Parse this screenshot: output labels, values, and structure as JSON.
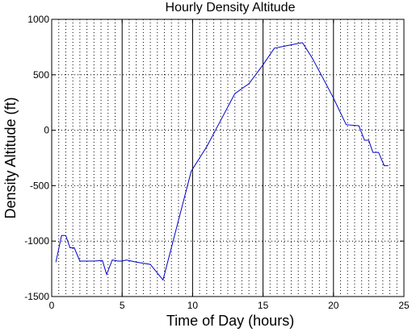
{
  "chart_data": {
    "type": "line",
    "title": "Hourly Density Altitude",
    "xlabel": "Time of Day (hours)",
    "ylabel": "Density Altitude (ft)",
    "xlim": [
      0,
      25
    ],
    "ylim": [
      -1500,
      1000
    ],
    "xticks": [
      0,
      5,
      10,
      15,
      20,
      25
    ],
    "yticks": [
      -1500,
      -1000,
      -500,
      0,
      500,
      1000
    ],
    "grid": "dotted vertical lines every 0.5 h, solid vertical lines at 5, 10, 15, 20 h, dotted horizontal lines at each y tick",
    "legend": "none",
    "series": [
      {
        "color": "#0000cc",
        "x": [
          0.3,
          0.7,
          1.0,
          1.3,
          1.6,
          2.0,
          3.0,
          3.6,
          3.9,
          4.3,
          4.7,
          5.0,
          5.3,
          6.0,
          7.0,
          7.9,
          9.9,
          11.0,
          12.0,
          13.0,
          14.0,
          15.0,
          15.8,
          17.0,
          17.8,
          18.5,
          19.0,
          20.0,
          20.9,
          21.8,
          22.2,
          22.5,
          22.8,
          23.2,
          23.6,
          23.9
        ],
        "y": [
          -1190,
          -950,
          -950,
          -1060,
          -1060,
          -1180,
          -1180,
          -1175,
          -1300,
          -1170,
          -1180,
          -1180,
          -1170,
          -1190,
          -1210,
          -1350,
          -370,
          -150,
          90,
          330,
          420,
          590,
          740,
          770,
          790,
          650,
          530,
          290,
          50,
          40,
          -90,
          -90,
          -200,
          -200,
          -320,
          -320
        ]
      }
    ]
  }
}
